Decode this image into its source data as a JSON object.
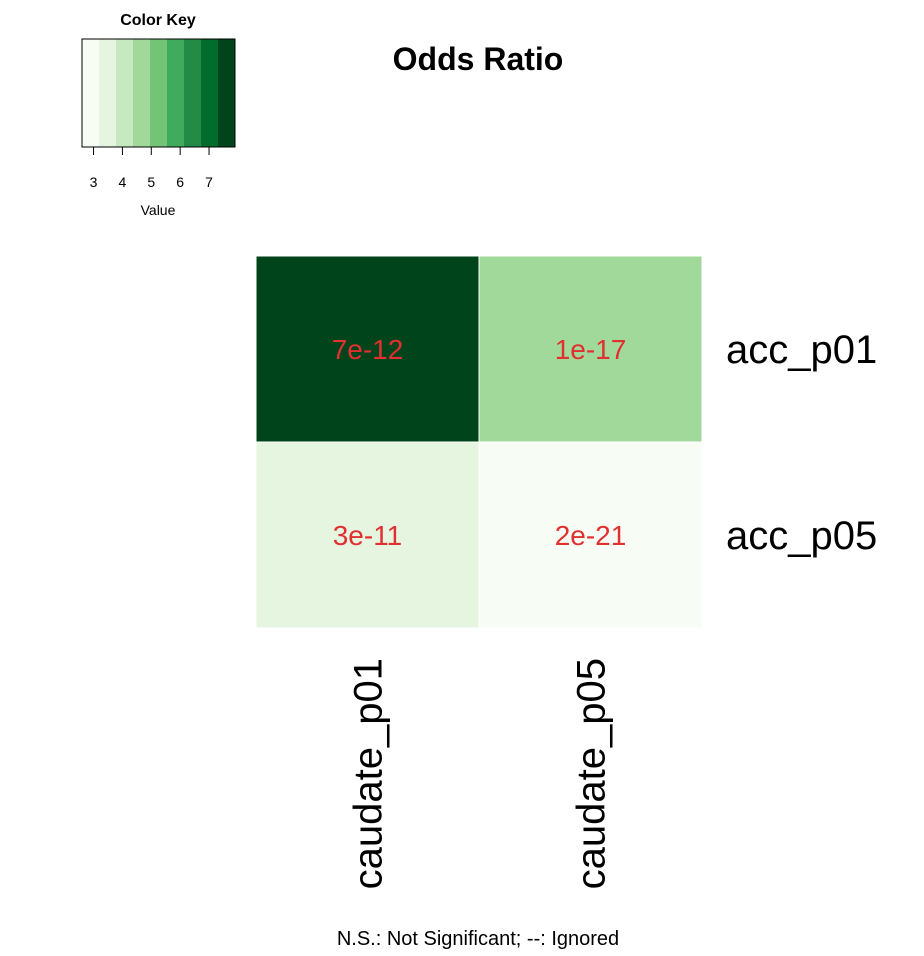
{
  "chart_data": {
    "type": "heatmap",
    "title": "Odds Ratio",
    "rows": [
      "acc_p01",
      "acc_p05"
    ],
    "columns": [
      "caudate_p01",
      "caudate_p05"
    ],
    "values": [
      [
        7.8,
        4.8
      ],
      [
        3.7,
        3.1
      ]
    ],
    "cell_labels": [
      [
        "7e-12",
        "1e-17"
      ],
      [
        "3e-11",
        "2e-21"
      ]
    ],
    "color_key": {
      "title": "Color Key",
      "xlabel": "Value",
      "ticks": [
        3,
        4,
        5,
        6,
        7
      ],
      "range": [
        2.6,
        7.9
      ],
      "colors": [
        "#f7fcf5",
        "#e5f5e0",
        "#c7e9c0",
        "#a1d99b",
        "#74c476",
        "#41ab5d",
        "#238b45",
        "#006d2c",
        "#00441b"
      ]
    },
    "footnote": "N.S.: Not Significant; --: Ignored",
    "cell_label_color": "#e03030"
  }
}
